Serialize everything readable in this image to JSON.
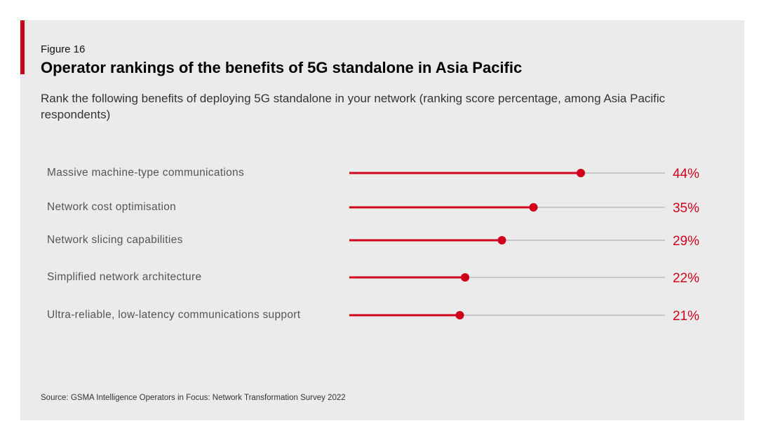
{
  "figure_label": "Figure 16",
  "title": "Operator rankings of the benefits of 5G standalone in Asia Pacific",
  "subtitle": "Rank the following benefits of deploying 5G standalone in your network (ranking score percentage, among Asia Pacific respondents)",
  "source": "Source: GSMA Intelligence Operators in Focus: Network Transformation Survey 2022",
  "colors": {
    "accent": "#d0021b",
    "track": "#c8c8c8",
    "background": "#ebebeb"
  },
  "chart_data": {
    "type": "lollipop",
    "orientation": "horizontal",
    "categories": [
      "Massive machine-type communications",
      "Network cost optimisation",
      "Network slicing capabilities",
      "Simplified network architecture",
      "Ultra-reliable, low-latency communications support"
    ],
    "values": [
      44,
      35,
      29,
      22,
      21
    ],
    "value_labels": [
      "44%",
      "35%",
      "29%",
      "22%",
      "21%"
    ],
    "xlim": [
      0,
      60
    ],
    "unit": "%",
    "grid": false
  }
}
